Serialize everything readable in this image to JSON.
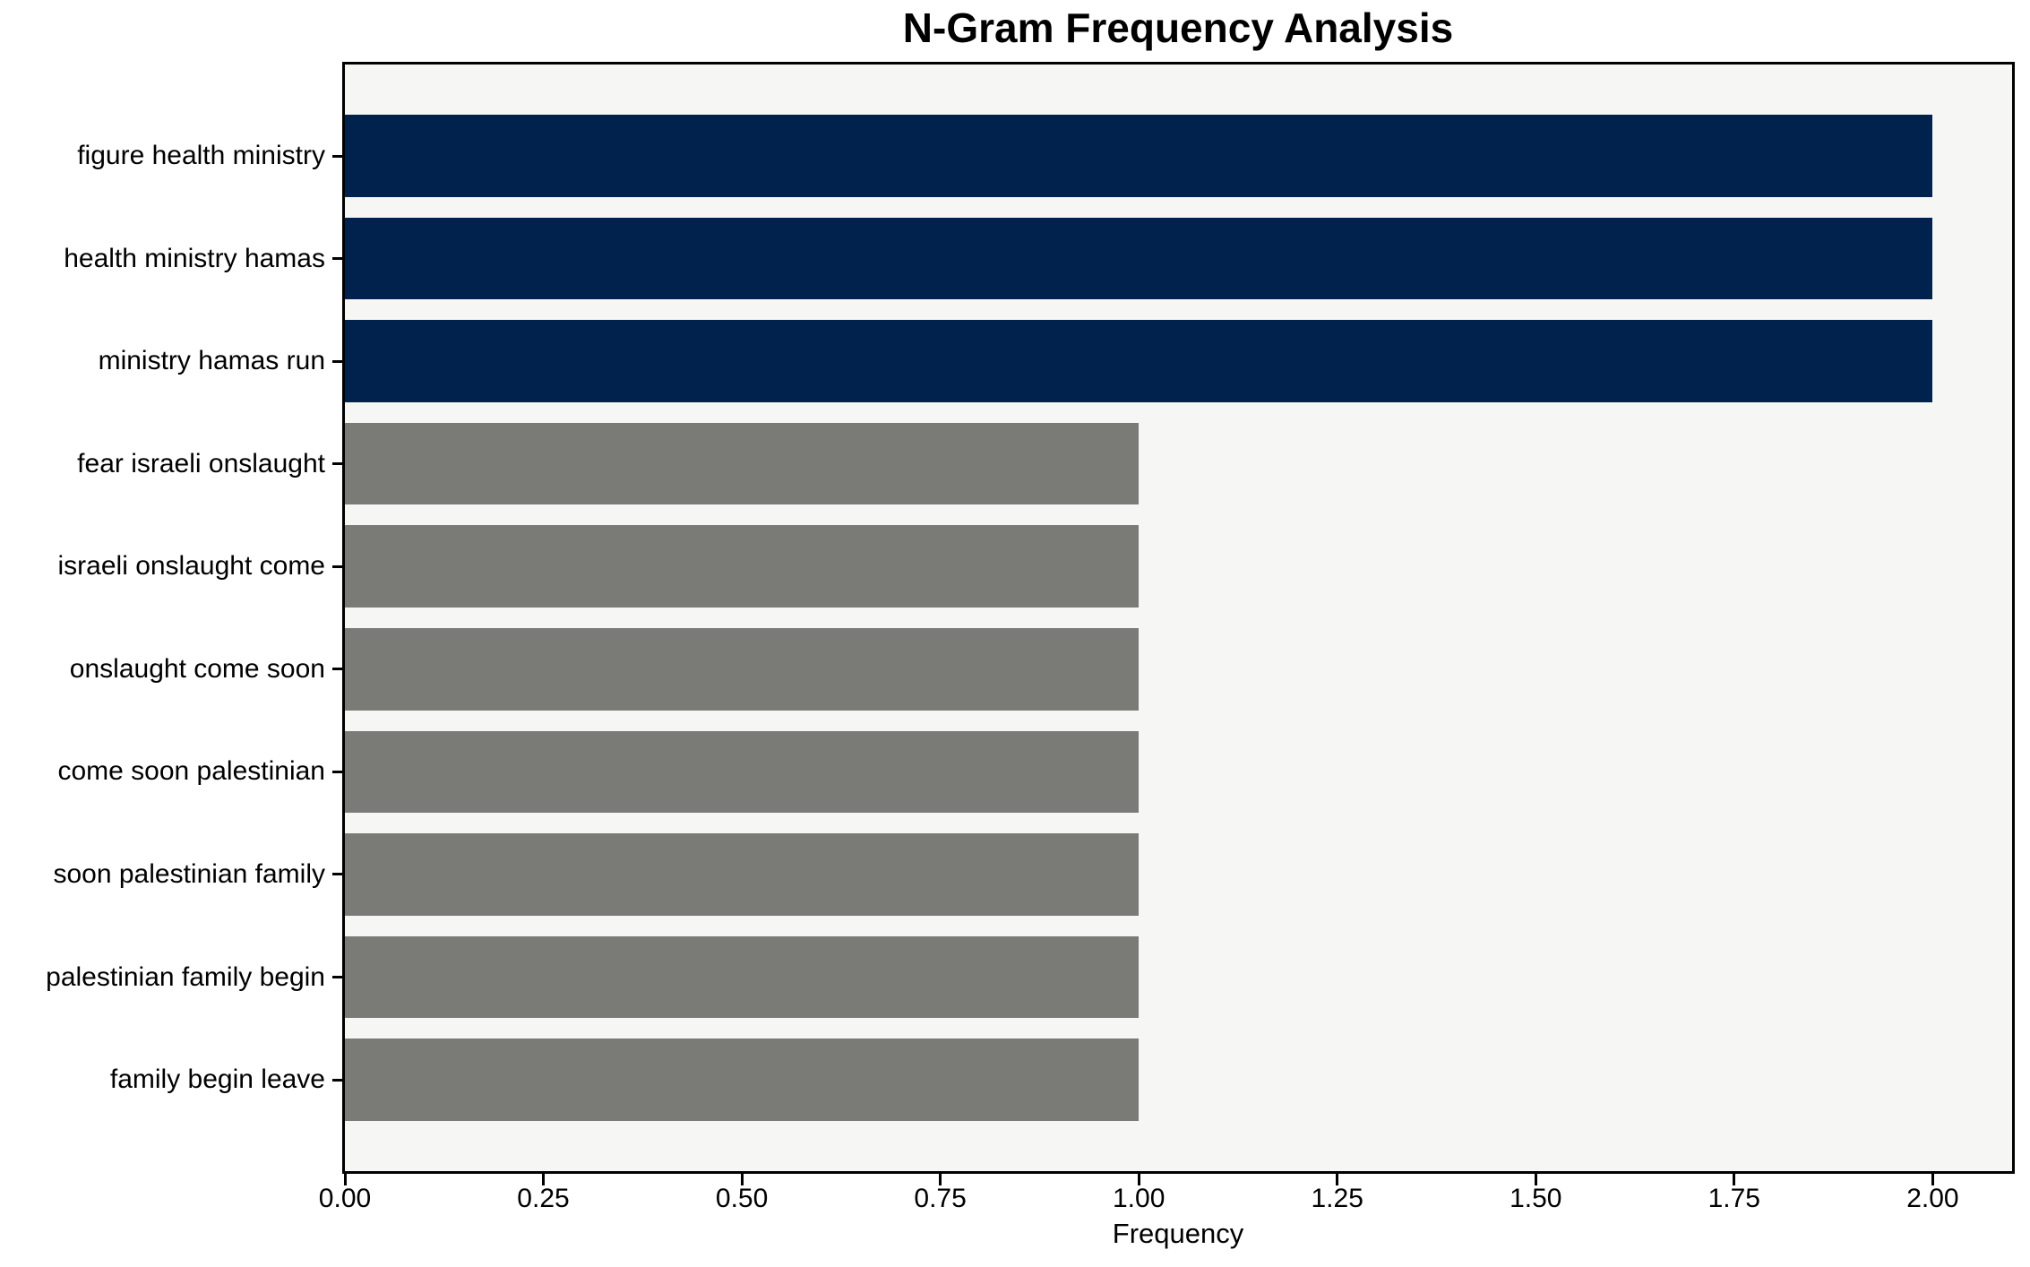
{
  "chart_data": {
    "type": "bar",
    "orientation": "horizontal",
    "title": "N-Gram Frequency Analysis",
    "xlabel": "Frequency",
    "ylabel": "",
    "categories": [
      "figure health ministry",
      "health ministry hamas",
      "ministry hamas run",
      "fear israeli onslaught",
      "israeli onslaught come",
      "onslaught come soon",
      "come soon palestinian",
      "soon palestinian family",
      "palestinian family begin",
      "family begin leave"
    ],
    "values": [
      2,
      2,
      2,
      1,
      1,
      1,
      1,
      1,
      1,
      1
    ],
    "bar_colors": [
      "#00224D",
      "#00224D",
      "#00224D",
      "#7A7A77",
      "#7A7A77",
      "#7A7A77",
      "#7A7A77",
      "#7A7A77",
      "#7A7A77",
      "#7A7A77"
    ],
    "xlim": [
      0,
      2.1
    ],
    "xtick_values": [
      0,
      0.25,
      0.5,
      0.75,
      1.0,
      1.25,
      1.5,
      1.75,
      2.0
    ],
    "xtick_labels": [
      "0.00",
      "0.25",
      "0.50",
      "0.75",
      "1.00",
      "1.25",
      "1.50",
      "1.75",
      "2.00"
    ],
    "grid": false,
    "legend": null,
    "plot_background": "#F6F6F5",
    "figure_background": "#FFFFFF",
    "axis_color": "#000000",
    "text_color": "#000000"
  }
}
